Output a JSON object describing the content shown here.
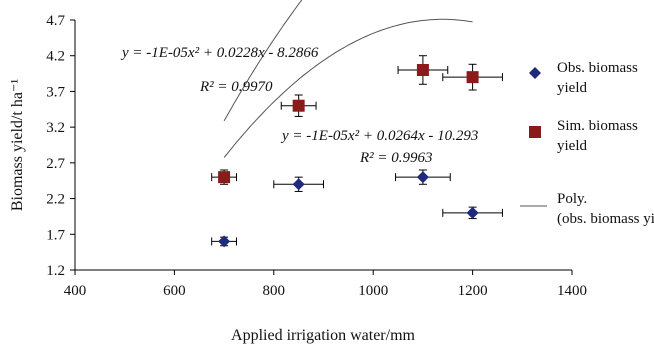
{
  "chart_data": {
    "type": "scatter",
    "xlabel": "Applied irrigation water/mm",
    "ylabel": "Biomass yield/t ha⁻¹",
    "xlim": [
      400,
      1400
    ],
    "ylim": [
      1.2,
      4.7
    ],
    "xticks": [
      "400",
      "600",
      "800",
      "1000",
      "1200",
      "1400"
    ],
    "yticks": [
      "1.2",
      "1.7",
      "2.2",
      "2.7",
      "3.2",
      "3.7",
      "4.2",
      "4.7"
    ],
    "grid": false,
    "legend_position": "right",
    "series": [
      {
        "name": "Obs. biomass yield",
        "marker": "diamond",
        "color": "#1f2a7a",
        "x": [
          700,
          850,
          1100,
          1200
        ],
        "y": [
          1.6,
          2.4,
          2.5,
          2.0
        ],
        "x_err": [
          25,
          50,
          55,
          60
        ],
        "y_err": [
          0.06,
          0.1,
          0.1,
          0.08
        ]
      },
      {
        "name": "Sim. biomass yield",
        "marker": "square",
        "color": "#8b1a1a",
        "x": [
          700,
          850,
          1100,
          1200
        ],
        "y": [
          2.5,
          3.5,
          4.0,
          3.9
        ],
        "x_err": [
          25,
          35,
          50,
          60
        ],
        "y_err": [
          0.1,
          0.15,
          0.2,
          0.18
        ]
      },
      {
        "name": "Poly. (obs. biomass yield",
        "type": "line",
        "color": "#555555",
        "fit_of": "obs",
        "x_range": [
          700,
          1200
        ],
        "coefficients": [
          -1e-05,
          0.0264,
          -10.293
        ]
      },
      {
        "type": "line",
        "color": "#555555",
        "fit_of": "sim",
        "x_range": [
          700,
          1200
        ],
        "coefficients": [
          -1e-05,
          0.0228,
          -8.2866
        ]
      }
    ],
    "annotations": {
      "sim_equation": "y = -1E-05x² + 0.0228x - 8.2866",
      "sim_r2": "R² = 0.9970",
      "obs_equation": "y = -1E-05x² + 0.0264x - 10.293",
      "obs_r2": "R² = 0.9963"
    }
  }
}
